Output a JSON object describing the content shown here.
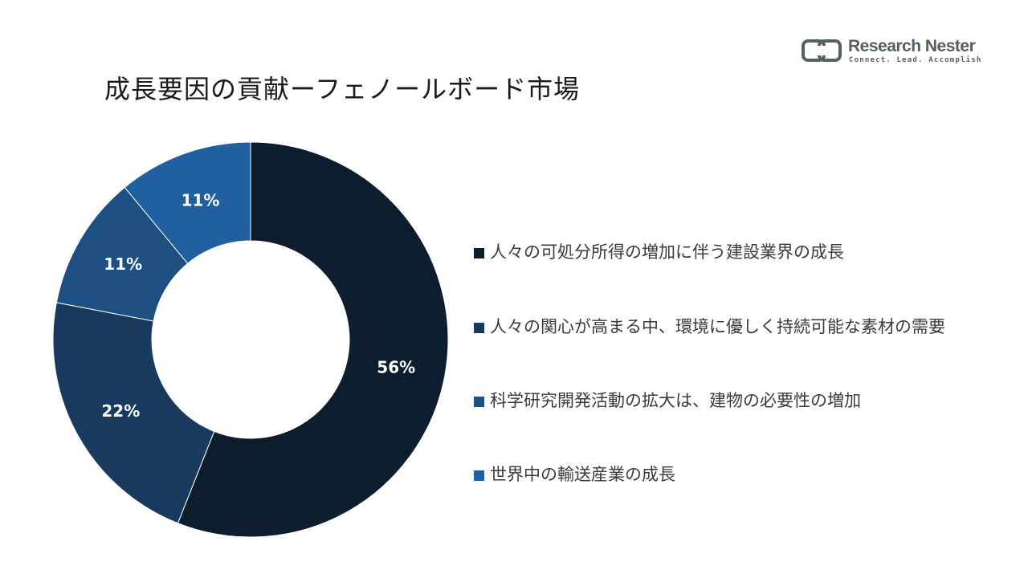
{
  "logo": {
    "name": "Research Nester",
    "tagline": "Connect. Lead. Accomplish"
  },
  "chart_data": {
    "type": "pie",
    "variant": "donut",
    "title": "成長要因の貢献ーフェノールボード市場",
    "categories": [
      "人々の可処分所得の増加に伴う建設業界の成長",
      "人々の関心が高まる中、環境に優しく持続可能な素材の需要",
      "科学研究開発活動の拡大は、建物の必要性の増加",
      "世界中の輸送産業の成長"
    ],
    "values": [
      56,
      22,
      11,
      11
    ],
    "labels": [
      "56%",
      "22%",
      "11%",
      "11%"
    ],
    "colors": [
      "#0c1d2e",
      "#173a5e",
      "#1d4f82",
      "#2160a0"
    ],
    "legend_position": "right"
  }
}
